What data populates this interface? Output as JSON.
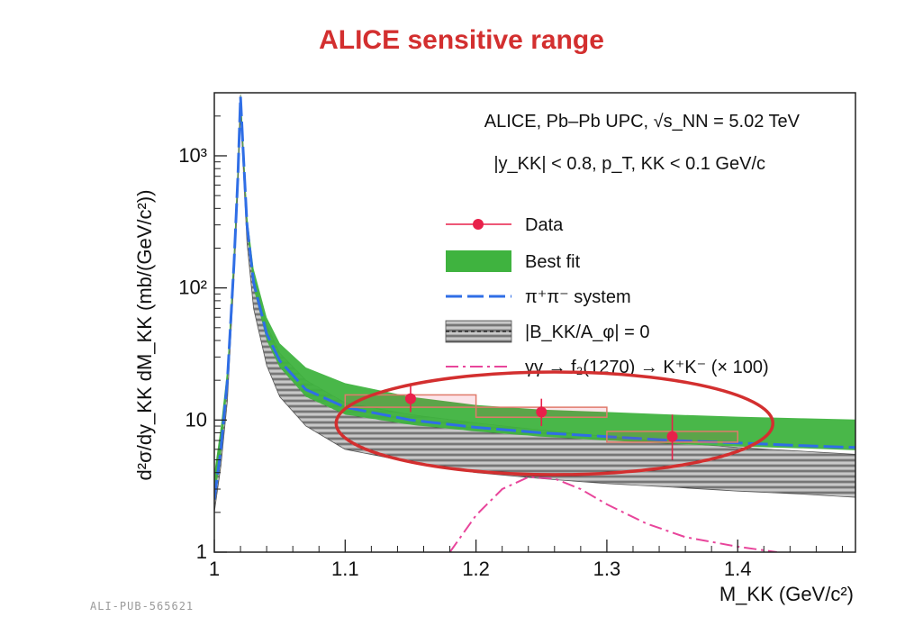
{
  "page": {
    "title": "ALICE sensitive range",
    "figure_id": "ALI-PUB-565621"
  },
  "chart_data": {
    "type": "line",
    "xlabel": "M_KK (GeV/c²)",
    "ylabel": "d²σ/dy_KK dM_KK (mb/(GeV/c²))",
    "xlim": [
      1.0,
      1.49
    ],
    "ylim": [
      1,
      3000
    ],
    "yscale": "log",
    "x_ticks": [
      "1",
      "1.1",
      "1.2",
      "1.3",
      "1.4"
    ],
    "x_tick_values": [
      1.0,
      1.1,
      1.2,
      1.3,
      1.4
    ],
    "y_ticks": [
      "1",
      "10",
      "10²",
      "10³"
    ],
    "y_tick_values": [
      1,
      10,
      100,
      1000
    ],
    "annotations": [
      "ALICE, Pb–Pb UPC, √s_NN = 5.02 TeV",
      "|y_KK| < 0.8, p_T, KK < 0.1 GeV/c"
    ],
    "legend_position": "top-right",
    "legend": [
      {
        "label": "Data",
        "color": "#e8204a",
        "style": "marker-line"
      },
      {
        "label": "Best fit",
        "color": "#3fb33f",
        "style": "band"
      },
      {
        "label": "π⁺π⁻ system",
        "color": "#2f6ee6",
        "style": "dashed"
      },
      {
        "label": "|B_KK/A_φ| = 0",
        "color": "#5a5a5a",
        "style": "hatched-band"
      },
      {
        "label": "γγ → f₂(1270) → K⁺K⁻ (× 100)",
        "color": "#e8459b",
        "style": "dash-dot"
      }
    ],
    "series": [
      {
        "name": "Data",
        "x": [
          1.15,
          1.25,
          1.35
        ],
        "y": [
          14.5,
          11.5,
          7.5
        ],
        "xerr": [
          0.05,
          0.05,
          0.05
        ],
        "yerr_low": [
          3.0,
          2.5,
          2.5
        ],
        "yerr_high": [
          4.5,
          3.0,
          3.5
        ],
        "syst_low": [
          12.5,
          10.5,
          6.8
        ],
        "syst_high": [
          15.5,
          12.5,
          8.2
        ],
        "color": "#e8204a"
      },
      {
        "name": "π⁺π⁻ system",
        "x": [
          1.0,
          1.005,
          1.01,
          1.015,
          1.018,
          1.02,
          1.022,
          1.025,
          1.03,
          1.04,
          1.05,
          1.07,
          1.1,
          1.15,
          1.2,
          1.25,
          1.3,
          1.35,
          1.4,
          1.45,
          1.49
        ],
        "y": [
          2.5,
          6,
          20,
          150,
          700,
          2800,
          1100,
          300,
          110,
          45,
          28,
          17,
          12.5,
          10,
          8.8,
          8,
          7.5,
          7.0,
          6.7,
          6.4,
          6.2
        ],
        "color": "#2f6ee6"
      },
      {
        "name": "Best fit",
        "x": [
          1.0,
          1.005,
          1.01,
          1.015,
          1.018,
          1.02,
          1.022,
          1.025,
          1.03,
          1.04,
          1.05,
          1.07,
          1.1,
          1.15,
          1.2,
          1.25,
          1.3,
          1.35,
          1.4,
          1.45,
          1.49
        ],
        "y_low": [
          2.5,
          5.5,
          18,
          140,
          650,
          2500,
          1000,
          280,
          100,
          40,
          25,
          15,
          11,
          9.2,
          8.2,
          7.5,
          7.0,
          6.6,
          6.3,
          6.1,
          5.9
        ],
        "y_high": [
          4.0,
          9.0,
          25,
          190,
          850,
          3000,
          1300,
          360,
          140,
          60,
          38,
          25,
          19,
          15,
          13,
          12,
          11.5,
          11,
          10.6,
          10.3,
          10.1
        ],
        "color": "#3fb33f"
      },
      {
        "name": "|B_KK/A_φ| = 0",
        "x": [
          1.0,
          1.005,
          1.01,
          1.015,
          1.018,
          1.02,
          1.022,
          1.025,
          1.03,
          1.04,
          1.05,
          1.07,
          1.1,
          1.15,
          1.2,
          1.25,
          1.3,
          1.35,
          1.4,
          1.45,
          1.49
        ],
        "y_low": [
          2.0,
          4.5,
          14,
          120,
          550,
          2200,
          850,
          220,
          70,
          26,
          15,
          9,
          6,
          4.8,
          4.0,
          3.6,
          3.3,
          3.1,
          2.9,
          2.75,
          2.6
        ],
        "y_high": [
          3.5,
          8,
          22,
          170,
          800,
          2900,
          1200,
          330,
          120,
          52,
          32,
          20,
          13.5,
          11,
          9.5,
          8.4,
          7.5,
          6.8,
          6.2,
          5.8,
          5.5
        ],
        "color": "#5a5a5a"
      },
      {
        "name": "γγ → f₂(1270) → K⁺K⁻ (× 100)",
        "x": [
          1.18,
          1.2,
          1.22,
          1.24,
          1.26,
          1.28,
          1.3,
          1.33,
          1.36,
          1.4,
          1.43
        ],
        "y": [
          1.0,
          1.9,
          3.0,
          3.7,
          3.6,
          3.0,
          2.3,
          1.65,
          1.3,
          1.1,
          1.0
        ],
        "color": "#e8459b"
      }
    ],
    "highlight": {
      "shape": "ellipse",
      "color": "#d32f2f",
      "x_range": [
        1.1,
        1.42
      ]
    }
  }
}
